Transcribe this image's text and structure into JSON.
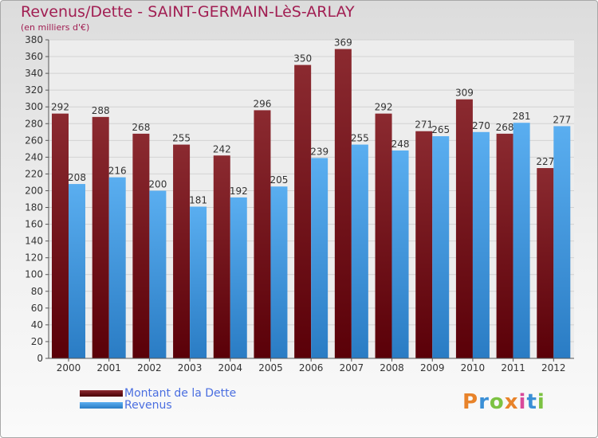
{
  "title": "Revenus/Dette - SAINT-GERMAIN-LèS-ARLAY",
  "subtitle": "(en milliers d'€)",
  "logo_text": "Proxiti",
  "logo_colors": [
    "#e8832a",
    "#3a8fd6",
    "#7cc242",
    "#e8832a",
    "#d84a9a",
    "#3a8fd6",
    "#7cc242"
  ],
  "colors": {
    "title": "#a11e52",
    "dette": "#6b0f17",
    "revenus": "#3a8fd6",
    "legend_text": "#4a6ee0"
  },
  "chart_data": {
    "type": "bar",
    "categories": [
      "2000",
      "2001",
      "2002",
      "2003",
      "2004",
      "2005",
      "2006",
      "2007",
      "2008",
      "2009",
      "2010",
      "2011",
      "2012"
    ],
    "series": [
      {
        "name": "Montant de la Dette",
        "values": [
          292,
          288,
          268,
          255,
          242,
          296,
          350,
          369,
          292,
          271,
          309,
          268,
          227
        ]
      },
      {
        "name": "Revenus",
        "values": [
          208,
          216,
          200,
          181,
          192,
          205,
          239,
          255,
          248,
          265,
          270,
          281,
          277
        ]
      }
    ],
    "ylim": [
      0,
      380
    ],
    "yticks": [
      0,
      20,
      40,
      60,
      80,
      100,
      120,
      140,
      160,
      180,
      200,
      220,
      240,
      260,
      280,
      300,
      320,
      340,
      360,
      380
    ],
    "grid": true,
    "legend": "bottom-left"
  }
}
